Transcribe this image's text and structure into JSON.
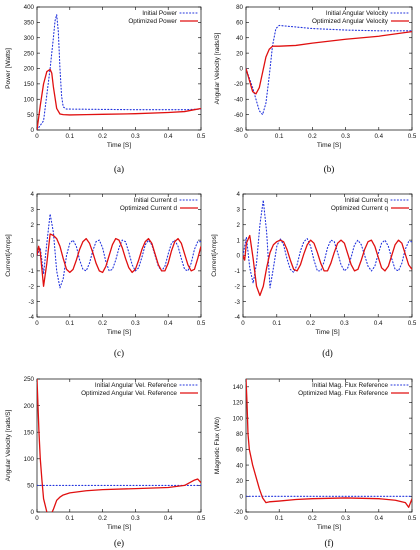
{
  "chart_data": [
    {
      "type": "line",
      "caption": "(a)",
      "xlabel": "Time [S]",
      "ylabel": "Power [Watts]",
      "xlim": [
        0,
        0.5
      ],
      "ylim": [
        0,
        400
      ],
      "xticks": [
        "0",
        "0.1",
        "0.2",
        "0.3",
        "0.4",
        "0.5"
      ],
      "yticks": [
        "0",
        "50",
        "100",
        "150",
        "200",
        "250",
        "300",
        "350",
        "400"
      ],
      "series": [
        {
          "name": "Initial Power",
          "style": "dotted",
          "color": "#2233dd",
          "x": [
            0,
            0.02,
            0.04,
            0.05,
            0.055,
            0.06,
            0.065,
            0.07,
            0.075,
            0.08,
            0.09,
            0.1,
            0.2,
            0.3,
            0.4,
            0.45,
            0.5
          ],
          "y": [
            0,
            30,
            200,
            300,
            355,
            375,
            320,
            200,
            110,
            75,
            68,
            68,
            67,
            66,
            66,
            66,
            68
          ]
        },
        {
          "name": "Optimized Power",
          "style": "solid",
          "color": "#e01010",
          "x": [
            0,
            0.01,
            0.02,
            0.03,
            0.04,
            0.045,
            0.05,
            0.06,
            0.07,
            0.08,
            0.1,
            0.15,
            0.2,
            0.3,
            0.4,
            0.45,
            0.48,
            0.5
          ],
          "y": [
            0,
            80,
            150,
            190,
            197,
            185,
            140,
            70,
            52,
            50,
            49,
            50,
            51,
            53,
            57,
            60,
            66,
            70
          ]
        }
      ]
    },
    {
      "type": "line",
      "caption": "(b)",
      "xlabel": "Time [S]",
      "ylabel": "Angular Velocity [rads/S]",
      "xlim": [
        0,
        0.5
      ],
      "ylim": [
        -80,
        80
      ],
      "xticks": [
        "0",
        "0.1",
        "0.2",
        "0.3",
        "0.4",
        "0.5"
      ],
      "yticks": [
        "-80",
        "-60",
        "-40",
        "-20",
        "0",
        "20",
        "40",
        "60",
        "80"
      ],
      "series": [
        {
          "name": "Initial Angular Velocity",
          "style": "dotted",
          "color": "#2233dd",
          "x": [
            0,
            0.02,
            0.04,
            0.05,
            0.06,
            0.07,
            0.08,
            0.09,
            0.1,
            0.15,
            0.2,
            0.3,
            0.4,
            0.5
          ],
          "y": [
            0,
            -25,
            -55,
            -60,
            -45,
            -10,
            30,
            52,
            56,
            54,
            52,
            50,
            49,
            49
          ]
        },
        {
          "name": "Optimized Angular Velocity",
          "style": "solid",
          "color": "#e01010",
          "x": [
            0,
            0.01,
            0.02,
            0.03,
            0.04,
            0.05,
            0.06,
            0.07,
            0.08,
            0.1,
            0.15,
            0.2,
            0.3,
            0.4,
            0.5
          ],
          "y": [
            0,
            -15,
            -30,
            -33,
            -25,
            -5,
            15,
            25,
            29,
            29,
            30,
            33,
            38,
            42,
            48
          ]
        }
      ]
    },
    {
      "type": "line",
      "caption": "(c)",
      "xlabel": "Time [S]",
      "ylabel": "Current[Amps]",
      "xlim": [
        0,
        0.5
      ],
      "ylim": [
        -4,
        4
      ],
      "xticks": [
        "0",
        "0.1",
        "0.2",
        "0.3",
        "0.4",
        "0.5"
      ],
      "yticks": [
        "-4",
        "-3",
        "-2",
        "-1",
        "0",
        "1",
        "2",
        "3",
        "4"
      ],
      "series": [
        {
          "name": "Initial Current d",
          "style": "dotted",
          "color": "#2233dd",
          "x": [
            0,
            0.01,
            0.02,
            0.03,
            0.04,
            0.05,
            0.06,
            0.07,
            0.08,
            0.09,
            0.1,
            0.11,
            0.12,
            0.13,
            0.14,
            0.15,
            0.16,
            0.17,
            0.18,
            0.19,
            0.2,
            0.21,
            0.22,
            0.23,
            0.24,
            0.25,
            0.26,
            0.27,
            0.28,
            0.29,
            0.3,
            0.31,
            0.32,
            0.33,
            0.34,
            0.35,
            0.36,
            0.37,
            0.38,
            0.39,
            0.4,
            0.41,
            0.42,
            0.43,
            0.44,
            0.45,
            0.46,
            0.47,
            0.48,
            0.49,
            0.5
          ],
          "y": [
            0,
            0.5,
            -1.2,
            0.8,
            2.7,
            1.5,
            -1.0,
            -2.1,
            -1.5,
            0.0,
            0.8,
            1.0,
            0.6,
            -0.3,
            -0.9,
            -1.0,
            -0.5,
            0.3,
            0.9,
            1.0,
            0.5,
            -0.4,
            -1.0,
            -0.9,
            -0.3,
            0.5,
            1.0,
            0.9,
            0.2,
            -0.6,
            -1.0,
            -0.8,
            -0.1,
            0.7,
            1.0,
            0.7,
            0.0,
            -0.7,
            -1.0,
            -0.7,
            0.1,
            0.8,
            1.0,
            0.6,
            -0.2,
            -0.9,
            -1.0,
            -0.5,
            0.4,
            0.9,
            0.9
          ]
        },
        {
          "name": "Optimized Current d",
          "style": "solid",
          "color": "#e01010",
          "x": [
            0,
            0.005,
            0.01,
            0.02,
            0.03,
            0.04,
            0.05,
            0.06,
            0.07,
            0.08,
            0.09,
            0.1,
            0.11,
            0.12,
            0.13,
            0.14,
            0.15,
            0.16,
            0.17,
            0.18,
            0.19,
            0.2,
            0.21,
            0.22,
            0.23,
            0.24,
            0.25,
            0.26,
            0.27,
            0.28,
            0.29,
            0.3,
            0.31,
            0.32,
            0.33,
            0.34,
            0.35,
            0.36,
            0.37,
            0.38,
            0.39,
            0.4,
            0.41,
            0.42,
            0.43,
            0.44,
            0.45,
            0.46,
            0.47,
            0.48,
            0.49,
            0.5
          ],
          "y": [
            0,
            0.6,
            0.2,
            -2.0,
            -0.5,
            1.4,
            1.3,
            1.1,
            0.6,
            -0.2,
            -0.9,
            -1.1,
            -0.9,
            -0.3,
            0.4,
            0.9,
            1.1,
            0.8,
            0.2,
            -0.5,
            -1.0,
            -1.1,
            -0.7,
            0.0,
            0.7,
            1.1,
            1.0,
            0.5,
            -0.2,
            -0.8,
            -1.1,
            -0.9,
            -0.3,
            0.4,
            0.9,
            1.1,
            0.8,
            0.1,
            -0.6,
            -1.0,
            -1.0,
            -0.5,
            0.3,
            0.9,
            1.1,
            0.8,
            0.1,
            -0.6,
            -1.0,
            -0.9,
            -0.2,
            0.6
          ]
        }
      ]
    },
    {
      "type": "line",
      "caption": "(d)",
      "xlabel": "Time [S]",
      "ylabel": "Current[Amps]",
      "xlim": [
        0,
        0.5
      ],
      "ylim": [
        -4,
        4
      ],
      "xticks": [
        "0",
        "0.1",
        "0.2",
        "0.3",
        "0.4",
        "0.5"
      ],
      "yticks": [
        "-4",
        "-3",
        "-2",
        "-1",
        "0",
        "1",
        "2",
        "3",
        "4"
      ],
      "series": [
        {
          "name": "Initial Current q",
          "style": "dotted",
          "color": "#2233dd",
          "x": [
            0,
            0.01,
            0.02,
            0.03,
            0.04,
            0.05,
            0.06,
            0.07,
            0.08,
            0.09,
            0.1,
            0.11,
            0.12,
            0.13,
            0.14,
            0.15,
            0.16,
            0.17,
            0.18,
            0.19,
            0.2,
            0.21,
            0.22,
            0.23,
            0.24,
            0.25,
            0.26,
            0.27,
            0.28,
            0.29,
            0.3,
            0.31,
            0.32,
            0.33,
            0.34,
            0.35,
            0.36,
            0.37,
            0.38,
            0.39,
            0.4,
            0.41,
            0.42,
            0.43,
            0.44,
            0.45,
            0.46,
            0.47,
            0.48,
            0.49,
            0.5
          ],
          "y": [
            0,
            1.2,
            -0.8,
            -1.8,
            -0.5,
            2.0,
            3.6,
            1.5,
            -2.1,
            -0.8,
            0.6,
            1.1,
            0.7,
            -0.2,
            -0.9,
            -1.1,
            -0.6,
            0.3,
            0.9,
            1.1,
            0.6,
            -0.3,
            -1.0,
            -1.0,
            -0.4,
            0.5,
            1.0,
            0.9,
            0.2,
            -0.6,
            -1.0,
            -0.8,
            -0.1,
            0.7,
            1.0,
            0.7,
            0.0,
            -0.7,
            -1.0,
            -0.7,
            0.1,
            0.8,
            1.0,
            0.6,
            -0.2,
            -0.9,
            -1.0,
            -0.5,
            0.4,
            0.9,
            0.9
          ]
        },
        {
          "name": "Optimized Current q",
          "style": "solid",
          "color": "#e01010",
          "x": [
            0,
            0.005,
            0.01,
            0.02,
            0.03,
            0.04,
            0.05,
            0.06,
            0.07,
            0.08,
            0.09,
            0.1,
            0.11,
            0.12,
            0.13,
            0.14,
            0.15,
            0.16,
            0.17,
            0.18,
            0.19,
            0.2,
            0.21,
            0.22,
            0.23,
            0.24,
            0.25,
            0.26,
            0.27,
            0.28,
            0.29,
            0.3,
            0.31,
            0.32,
            0.33,
            0.34,
            0.35,
            0.36,
            0.37,
            0.38,
            0.39,
            0.4,
            0.41,
            0.42,
            0.43,
            0.44,
            0.45,
            0.46,
            0.47,
            0.48,
            0.49,
            0.5
          ],
          "y": [
            0,
            -0.3,
            0.8,
            1.3,
            -0.2,
            -2.0,
            -2.6,
            -2.0,
            -0.8,
            0.2,
            0.7,
            0.9,
            1.0,
            0.9,
            0.4,
            -0.3,
            -0.9,
            -1.0,
            -0.6,
            0.1,
            0.7,
            1.0,
            0.8,
            0.2,
            -0.5,
            -1.0,
            -1.0,
            -0.5,
            0.2,
            0.8,
            1.0,
            0.8,
            0.1,
            -0.6,
            -1.0,
            -0.9,
            -0.3,
            0.4,
            0.9,
            1.0,
            0.6,
            -0.1,
            -0.8,
            -1.0,
            -0.7,
            0.0,
            0.7,
            1.0,
            0.8,
            0.1,
            -0.6,
            -0.9
          ]
        }
      ]
    },
    {
      "type": "line",
      "caption": "(e)",
      "xlabel": "Time [S]",
      "ylabel": "Angular Velocity [rads/S]",
      "xlim": [
        0,
        0.5
      ],
      "ylim": [
        0,
        250
      ],
      "xticks": [
        "0",
        "0.1",
        "0.2",
        "0.3",
        "0.4",
        "0.5"
      ],
      "yticks": [
        "0",
        "50",
        "100",
        "150",
        "200",
        "250"
      ],
      "series": [
        {
          "name": "Initial Angular Vel. Reference",
          "style": "dotted",
          "color": "#2233dd",
          "x": [
            0,
            0.5
          ],
          "y": [
            50,
            50
          ]
        },
        {
          "name": "Optimized Angular Vel. Reference",
          "style": "solid",
          "color": "#e01010",
          "x": [
            0,
            0.003,
            0.006,
            0.01,
            0.015,
            0.02,
            0.03,
            0.04,
            0.05,
            0.06,
            0.07,
            0.08,
            0.1,
            0.15,
            0.2,
            0.3,
            0.4,
            0.45,
            0.48,
            0.49,
            0.5
          ],
          "y": [
            250,
            200,
            150,
            100,
            60,
            25,
            0,
            -8,
            5,
            22,
            28,
            32,
            36,
            40,
            42,
            44,
            46,
            50,
            60,
            62,
            55
          ]
        }
      ]
    },
    {
      "type": "line",
      "caption": "(f)",
      "xlabel": "Time [S]",
      "ylabel": "Magnetic Flux (Wb)",
      "xlim": [
        0,
        0.5
      ],
      "ylim": [
        -20,
        150
      ],
      "xticks": [
        "0",
        "0.1",
        "0.2",
        "0.3",
        "0.4",
        "0.5"
      ],
      "yticks": [
        "-20",
        "0",
        "20",
        "40",
        "60",
        "80",
        "100",
        "120",
        "140"
      ],
      "series": [
        {
          "name": "Initial Mag. Flux Reference",
          "style": "dotted",
          "color": "#2233dd",
          "x": [
            0,
            0.5
          ],
          "y": [
            0,
            0
          ]
        },
        {
          "name": "Optimized Mag. Flux Reference",
          "style": "solid",
          "color": "#e01010",
          "x": [
            0,
            0.003,
            0.006,
            0.01,
            0.02,
            0.03,
            0.04,
            0.05,
            0.06,
            0.07,
            0.1,
            0.15,
            0.2,
            0.3,
            0.4,
            0.45,
            0.48,
            0.49,
            0.5
          ],
          "y": [
            150,
            120,
            80,
            60,
            40,
            25,
            10,
            -2,
            -8,
            -7,
            -6,
            -4,
            -3,
            -2,
            -3,
            -5,
            -8,
            -14,
            -3
          ]
        }
      ]
    }
  ]
}
